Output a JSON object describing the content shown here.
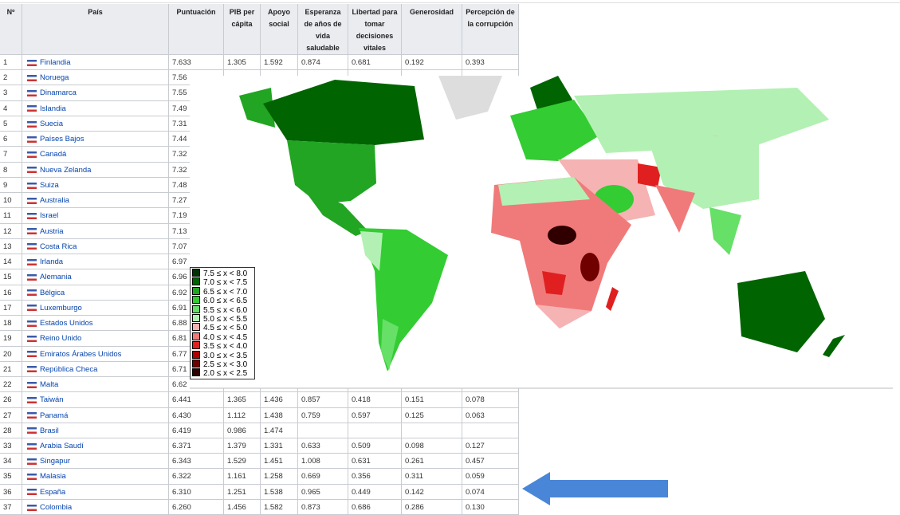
{
  "table": {
    "headers": [
      "Nº",
      "País",
      "Puntuación",
      "PIB per cápita",
      "Apoyo social",
      "Esperanza de años de vida saludable",
      "Libertad para tomar decisiones vitales",
      "Generosidad",
      "Percepción de la corrupción"
    ],
    "rows": [
      [
        "1",
        "Finlandia",
        "7.633",
        "1.305",
        "1.592",
        "0.874",
        "0.681",
        "0.192",
        "0.393"
      ],
      [
        "2",
        "Noruega",
        "7.56"
      ],
      [
        "3",
        "Dinamarca",
        "7.55"
      ],
      [
        "4",
        "Islandia",
        "7.49"
      ],
      [
        "5",
        "Suecia",
        "7.31"
      ],
      [
        "6",
        "Países Bajos",
        "7.44"
      ],
      [
        "7",
        "Canadá",
        "7.32"
      ],
      [
        "8",
        "Nueva Zelanda",
        "7.32"
      ],
      [
        "9",
        "Suiza",
        "7.48"
      ],
      [
        "10",
        "Australia",
        "7.27"
      ],
      [
        "11",
        "Israel",
        "7.19"
      ],
      [
        "12",
        "Austria",
        "7.13"
      ],
      [
        "13",
        "Costa Rica",
        "7.07"
      ],
      [
        "14",
        "Irlanda",
        "6.97"
      ],
      [
        "15",
        "Alemania",
        "6.96"
      ],
      [
        "16",
        "Bélgica",
        "6.92"
      ],
      [
        "17",
        "Luxemburgo",
        "6.91"
      ],
      [
        "18",
        "Estados Unidos",
        "6.88"
      ],
      [
        "19",
        "Reino Unido",
        "6.81"
      ],
      [
        "20",
        "Emiratos Árabes Unidos",
        "6.77"
      ],
      [
        "21",
        "República Checa",
        "6.71"
      ],
      [
        "22",
        "Malta",
        "6.62"
      ],
      [
        "26",
        "Taiwán",
        "6.441",
        "1.365",
        "1.436",
        "0.857",
        "0.418",
        "0.151",
        "0.078"
      ],
      [
        "27",
        "Panamá",
        "6.430",
        "1.112",
        "1.438",
        "0.759",
        "0.597",
        "0.125",
        "0.063"
      ],
      [
        "28",
        "Brasil",
        "6.419",
        "0.986",
        "1.474"
      ],
      [
        "33",
        "Arabia Saudí",
        "6.371",
        "1.379",
        "1.331",
        "0.633",
        "0.509",
        "0.098",
        "0.127"
      ],
      [
        "34",
        "Singapur",
        "6.343",
        "1.529",
        "1.451",
        "1.008",
        "0.631",
        "0.261",
        "0.457"
      ],
      [
        "35",
        "Malasia",
        "6.322",
        "1.161",
        "1.258",
        "0.669",
        "0.356",
        "0.311",
        "0.059"
      ],
      [
        "36",
        "España",
        "6.310",
        "1.251",
        "1.538",
        "0.965",
        "0.449",
        "0.142",
        "0.074"
      ],
      [
        "37",
        "Colombia",
        "6.260",
        "1.456",
        "1.582",
        "0.873",
        "0.686",
        "0.286",
        "0.130"
      ]
    ]
  },
  "map": {
    "legend": [
      {
        "label": "7.5 ≤ x < 8.0",
        "color": "#003300"
      },
      {
        "label": "7.0 ≤ x < 7.5",
        "color": "#006400"
      },
      {
        "label": "6.5 ≤ x < 7.0",
        "color": "#22a522"
      },
      {
        "label": "6.0 ≤ x < 6.5",
        "color": "#33cc33"
      },
      {
        "label": "5.5 ≤ x < 6.0",
        "color": "#66e066"
      },
      {
        "label": "5.0 ≤ x < 5.5",
        "color": "#b3f0b3"
      },
      {
        "label": "4.5 ≤ x < 5.0",
        "color": "#f5b3b3"
      },
      {
        "label": "4.0 ≤ x < 4.5",
        "color": "#f07a7a"
      },
      {
        "label": "3.5 ≤ x < 4.0",
        "color": "#e02020"
      },
      {
        "label": "3.0 ≤ x < 3.5",
        "color": "#b00000"
      },
      {
        "label": "2.5 ≤ x < 3.0",
        "color": "#700000"
      },
      {
        "label": "2.0 ≤ x < 2.5",
        "color": "#300000"
      }
    ]
  }
}
